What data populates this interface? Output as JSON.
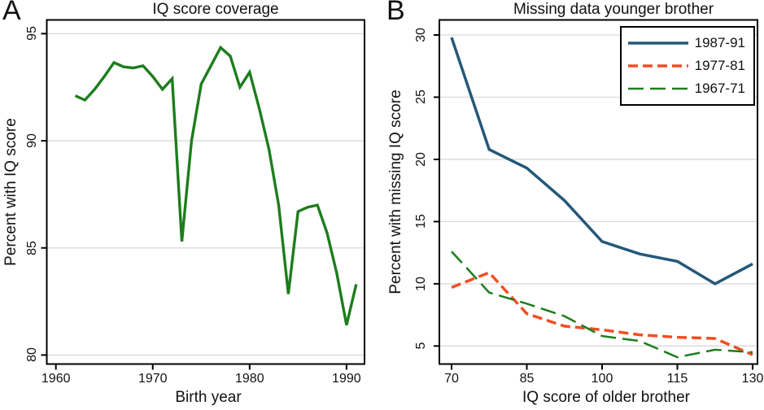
{
  "panels": [
    {
      "letter": "A",
      "title": "IQ score coverage",
      "xlabel": "Birth year",
      "ylabel": "Percent with IQ score"
    },
    {
      "letter": "B",
      "title": "Missing data younger brother",
      "xlabel": "IQ score of older brother",
      "ylabel": "Percent with missing IQ score"
    }
  ],
  "colors": {
    "green": "#1d7d1d",
    "navy": "#23587a",
    "orange_red": "#f04f23",
    "gridline": "#d9d9d9",
    "axis": "#000000",
    "text": "#111111"
  },
  "chart_data": [
    {
      "type": "line",
      "panel": "A",
      "title": "IQ score coverage",
      "xlabel": "Birth year",
      "ylabel": "Percent with IQ score",
      "x": [
        1962,
        1963,
        1964,
        1965,
        1966,
        1967,
        1968,
        1969,
        1970,
        1971,
        1972,
        1973,
        1974,
        1975,
        1976,
        1977,
        1978,
        1979,
        1980,
        1981,
        1982,
        1983,
        1984,
        1985,
        1986,
        1987,
        1988,
        1989,
        1990,
        1991
      ],
      "series": [
        {
          "name": "Percent with IQ score",
          "color": "#1d7d1d",
          "style": "solid",
          "width": 3.4,
          "values": [
            92.1,
            91.9,
            92.4,
            93.0,
            93.65,
            93.45,
            93.4,
            93.5,
            93.0,
            92.4,
            92.9,
            85.3,
            90.0,
            92.65,
            93.5,
            94.35,
            93.95,
            92.5,
            93.2,
            91.5,
            89.6,
            87.0,
            82.85,
            86.7,
            86.9,
            87.0,
            85.7,
            83.8,
            81.4,
            83.3
          ]
        }
      ],
      "xticks": [
        1960,
        1970,
        1980,
        1990
      ],
      "yticks": [
        80,
        85,
        90,
        95
      ],
      "xlim": [
        1959.06,
        1991.86
      ],
      "ylim": [
        79.58,
        95.64
      ],
      "grid": "horizontal",
      "legend": null
    },
    {
      "type": "line",
      "panel": "B",
      "title": "Missing data younger brother",
      "xlabel": "IQ score of older brother",
      "ylabel": "Percent with missing IQ score",
      "x": [
        70,
        77.5,
        85,
        92.5,
        100,
        107.5,
        115,
        122.5,
        130
      ],
      "series": [
        {
          "name": "1987-91",
          "color": "#23587a",
          "style": "solid",
          "width": 3.5,
          "values": [
            29.8,
            20.8,
            19.3,
            16.7,
            13.4,
            12.4,
            11.8,
            10.0,
            11.6
          ]
        },
        {
          "name": "1977-81",
          "color": "#f04f23",
          "style": "dashed",
          "width": 3.5,
          "values": [
            9.7,
            10.9,
            7.6,
            6.6,
            6.3,
            5.9,
            5.7,
            5.6,
            4.3
          ]
        },
        {
          "name": "1967-71",
          "color": "#1d7d1d",
          "style": "longdash",
          "width": 2.5,
          "values": [
            12.6,
            9.3,
            8.4,
            7.4,
            5.8,
            5.4,
            4.1,
            4.7,
            4.5
          ]
        }
      ],
      "xticks": [
        70,
        85,
        100,
        115,
        130
      ],
      "yticks": [
        5,
        10,
        15,
        20,
        25,
        30
      ],
      "xlim": [
        67.57,
        130.97
      ],
      "ylim": [
        3.55,
        31.21
      ],
      "grid": "horizontal",
      "legend": {
        "position": "top-right",
        "entries": [
          "1987-91",
          "1977-81",
          "1967-71"
        ]
      }
    }
  ]
}
